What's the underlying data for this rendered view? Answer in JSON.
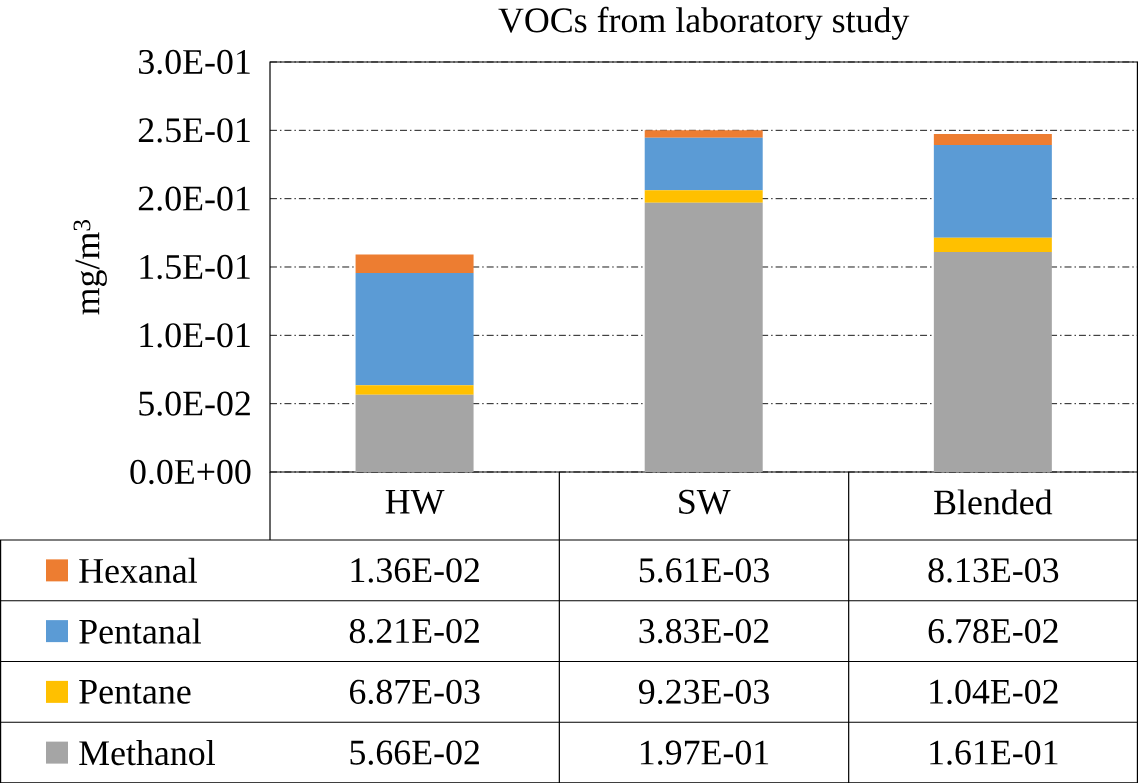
{
  "chart_data": {
    "type": "bar",
    "title": "VOCs from laboratory study",
    "ylabel": "mg/m$^{3}$",
    "stacked": true,
    "categories": [
      "HW",
      "SW",
      "Blended"
    ],
    "series": [
      {
        "name": "Methanol",
        "color": "#a5a5a5",
        "values": [
          0.0566,
          0.197,
          0.161
        ],
        "value_labels": [
          "5.66E-02",
          "1.97E-01",
          "1.61E-01"
        ]
      },
      {
        "name": "Pentane",
        "color": "#ffc000",
        "values": [
          0.00687,
          0.00923,
          0.0104
        ],
        "value_labels": [
          "6.87E-03",
          "9.23E-03",
          "1.04E-02"
        ]
      },
      {
        "name": "Pentanal",
        "color": "#5b9bd5",
        "values": [
          0.0821,
          0.0383,
          0.0678
        ],
        "value_labels": [
          "8.21E-02",
          "3.83E-02",
          "6.78E-02"
        ]
      },
      {
        "name": "Hexanal",
        "color": "#ed7d31",
        "values": [
          0.0136,
          0.00561,
          0.00813
        ],
        "value_labels": [
          "1.36E-02",
          "5.61E-03",
          "8.13E-03"
        ]
      }
    ],
    "ylim": [
      0,
      0.3
    ],
    "yticks": [
      {
        "value": 0,
        "label": "0.0E+00"
      },
      {
        "value": 0.05,
        "label": "5.0E-02"
      },
      {
        "value": 0.1,
        "label": "1.0E-01"
      },
      {
        "value": 0.15,
        "label": "1.5E-01"
      },
      {
        "value": 0.2,
        "label": "2.0E-01"
      },
      {
        "value": 0.25,
        "label": "2.5E-01"
      },
      {
        "value": 0.3,
        "label": "3.0E-01"
      }
    ],
    "grid": "y",
    "legend": "bottom"
  }
}
